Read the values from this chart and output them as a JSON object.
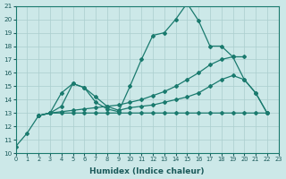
{
  "title": "",
  "xlabel": "Humidex (Indice chaleur)",
  "ylabel": "",
  "bg_color": "#cce8e8",
  "grid_color": "#aacece",
  "line_color": "#1a7a6e",
  "xlim": [
    0,
    23
  ],
  "ylim": [
    10,
    21
  ],
  "yticks": [
    10,
    11,
    12,
    13,
    14,
    15,
    16,
    17,
    18,
    19,
    20,
    21
  ],
  "xticks": [
    0,
    1,
    2,
    3,
    4,
    5,
    6,
    7,
    8,
    9,
    10,
    11,
    12,
    13,
    14,
    15,
    16,
    17,
    18,
    19,
    20,
    21,
    22,
    23
  ],
  "series": [
    {
      "x": [
        0,
        1,
        2,
        3,
        4,
        5,
        6,
        7,
        8,
        9,
        10,
        11,
        12,
        13,
        14,
        15,
        16,
        17,
        18,
        19,
        20,
        21,
        22
      ],
      "y": [
        10.5,
        11.5,
        12.8,
        13.0,
        14.5,
        15.2,
        14.9,
        13.8,
        13.3,
        13.1,
        15.0,
        17.0,
        18.8,
        19.0,
        20.0,
        21.2,
        19.9,
        18.0,
        18.0,
        17.2,
        15.5,
        14.5,
        13.0
      ]
    },
    {
      "x": [
        2,
        3,
        4,
        5,
        6,
        7,
        8,
        9,
        10,
        11,
        12,
        13,
        14,
        15,
        16,
        17,
        18,
        19,
        20
      ],
      "y": [
        12.8,
        13.0,
        13.1,
        13.2,
        13.3,
        13.4,
        13.5,
        13.6,
        13.8,
        14.0,
        14.3,
        14.6,
        15.0,
        15.5,
        16.0,
        16.6,
        17.0,
        17.2,
        17.2
      ]
    },
    {
      "x": [
        2,
        3,
        4,
        5,
        6,
        7,
        8,
        9,
        10,
        11,
        12,
        13,
        14,
        15,
        16,
        17,
        18,
        19,
        20,
        21,
        22
      ],
      "y": [
        12.8,
        13.0,
        13.5,
        15.2,
        14.9,
        14.2,
        13.5,
        13.2,
        13.4,
        13.5,
        13.6,
        13.8,
        14.0,
        14.2,
        14.5,
        15.0,
        15.5,
        15.8,
        15.5,
        14.5,
        13.0
      ]
    },
    {
      "x": [
        2,
        3,
        4,
        5,
        6,
        7,
        8,
        9,
        10,
        11,
        12,
        13,
        14,
        15,
        16,
        17,
        18,
        19,
        20,
        21,
        22
      ],
      "y": [
        12.8,
        13.0,
        13.0,
        13.0,
        13.0,
        13.0,
        13.0,
        13.0,
        13.0,
        13.0,
        13.0,
        13.0,
        13.0,
        13.0,
        13.0,
        13.0,
        13.0,
        13.0,
        13.0,
        13.0,
        13.0
      ]
    }
  ]
}
